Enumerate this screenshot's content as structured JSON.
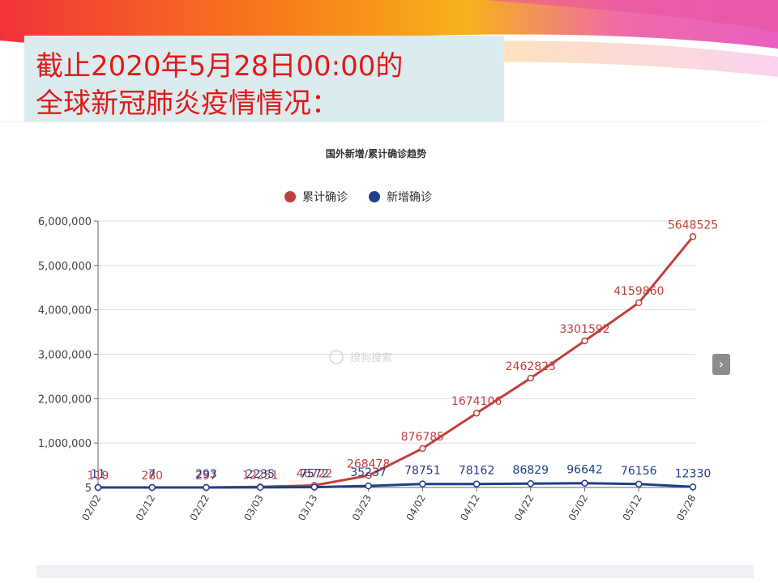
{
  "slide": {
    "title_line_1": "截止2020年5月28日00:00的",
    "title_line_2": "全球新冠肺炎疫情情况："
  },
  "colors": {
    "cumulative": "#c0403e",
    "daily": "#1f3f8a",
    "grid": "#dddddd",
    "title_red": "#e01a1a"
  },
  "watermark": "搜狗搜索",
  "nav": {
    "next_icon": "chevron-right-icon",
    "next_label": "›"
  },
  "chart_data": {
    "type": "line",
    "title": "国外新增/累计确诊趋势",
    "legend_position": "top",
    "grid": true,
    "x_tick_labels": [
      "02/02",
      "02/12",
      "02/22",
      "03/03",
      "03/13",
      "03/23",
      "04/02",
      "04/12",
      "04/22",
      "05/02",
      "05/12",
      "05/28"
    ],
    "y_tick_labels": [
      "5",
      "1,000,000",
      "2,000,000",
      "3,000,000",
      "4,000,000",
      "5,000,000",
      "6,000,000"
    ],
    "ylim": [
      0,
      6000000
    ],
    "series": [
      {
        "name": "累计确诊",
        "color": "#c0403e",
        "x": [
          "02/02",
          "02/12",
          "02/22",
          "03/03",
          "03/13",
          "03/23",
          "04/02",
          "04/12",
          "04/22",
          "05/02",
          "05/12",
          "05/28"
        ],
        "values": [
          119,
          280,
          297,
          12251,
          46722,
          268478,
          876785,
          1674106,
          2462823,
          3301592,
          4159860,
          5648525
        ],
        "labels": [
          "119",
          "280",
          "297",
          "12251",
          "46722",
          "268478",
          "876785",
          "1674106",
          "2462823",
          "3301592",
          "4159860",
          "5648525"
        ]
      },
      {
        "name": "新增确诊",
        "color": "#1f3f8a",
        "x": [
          "02/02",
          "02/12",
          "02/22",
          "03/03",
          "03/13",
          "03/23",
          "04/02",
          "04/12",
          "04/22",
          "05/02",
          "05/12",
          "05/28"
        ],
        "values": [
          11,
          7,
          293,
          2235,
          7572,
          35237,
          78751,
          78162,
          86829,
          96642,
          76156,
          12330
        ],
        "labels": [
          "11",
          "7",
          "293",
          "2235",
          "7572",
          "35237",
          "78751",
          "78162",
          "86829",
          "96642",
          "76156",
          "12330"
        ]
      }
    ]
  }
}
